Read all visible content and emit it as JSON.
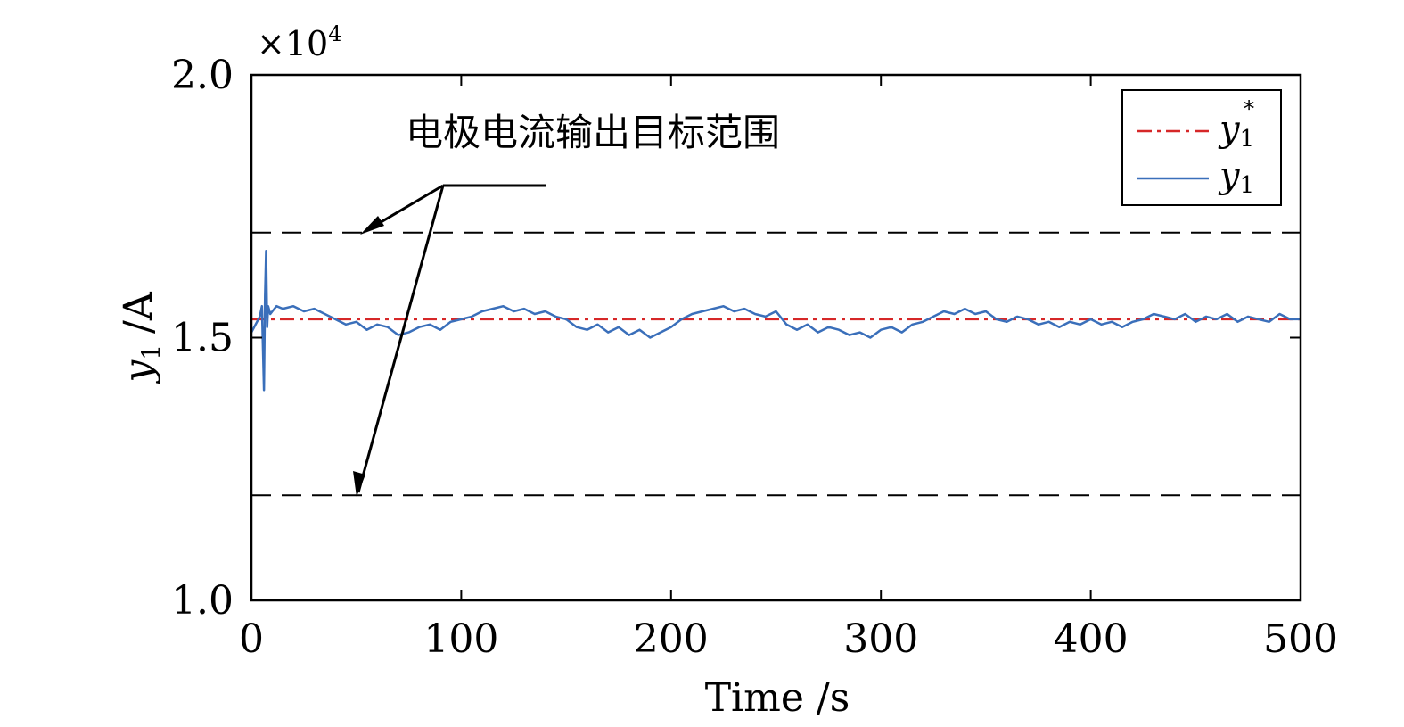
{
  "chart_data": {
    "type": "line",
    "exponent_label": "×10",
    "exponent_power": "4",
    "xlabel": "Time /s",
    "ylabel_var": "y",
    "ylabel_sub": "1",
    "ylabel_unit": "/A",
    "xlim": [
      0,
      500
    ],
    "ylim": [
      10000,
      20000
    ],
    "x_ticks": [
      0,
      100,
      200,
      300,
      400,
      500
    ],
    "x_tick_labels": [
      "0",
      "100",
      "200",
      "300",
      "400",
      "500"
    ],
    "y_ticks": [
      10000,
      15000,
      20000
    ],
    "y_tick_labels": [
      "1.0",
      "1.5",
      "2.0"
    ],
    "annotation": "电极电流输出目标范围",
    "bounds": [
      {
        "name": "upper",
        "y": 17000
      },
      {
        "name": "lower",
        "y": 12000
      }
    ],
    "series": [
      {
        "name": "y1*",
        "legend_var": "y",
        "legend_sub": "1",
        "legend_sup": "*",
        "style": "dashdot",
        "color": "#d62728",
        "x": [
          0,
          500
        ],
        "y": [
          15350,
          15350
        ]
      },
      {
        "name": "y1",
        "legend_var": "y",
        "legend_sub": "1",
        "style": "solid",
        "color": "#3a6fba",
        "x": [
          0,
          2,
          4,
          5,
          6,
          6.5,
          7,
          7.5,
          8,
          9,
          10,
          12,
          15,
          20,
          25,
          30,
          35,
          40,
          45,
          50,
          55,
          60,
          65,
          70,
          75,
          80,
          85,
          90,
          95,
          100,
          105,
          110,
          115,
          120,
          125,
          130,
          135,
          140,
          145,
          150,
          155,
          160,
          165,
          170,
          175,
          180,
          185,
          190,
          195,
          200,
          205,
          210,
          215,
          220,
          225,
          230,
          235,
          240,
          245,
          250,
          255,
          260,
          265,
          270,
          275,
          280,
          285,
          290,
          295,
          300,
          305,
          310,
          315,
          320,
          325,
          330,
          335,
          340,
          345,
          350,
          355,
          360,
          365,
          370,
          375,
          380,
          385,
          390,
          395,
          400,
          405,
          410,
          415,
          420,
          425,
          430,
          435,
          440,
          445,
          450,
          455,
          460,
          465,
          470,
          475,
          480,
          485,
          490,
          495,
          500
        ],
        "y": [
          15100,
          15250,
          15400,
          15600,
          14000,
          15800,
          16650,
          15200,
          15600,
          15450,
          15500,
          15600,
          15550,
          15600,
          15500,
          15550,
          15450,
          15350,
          15250,
          15300,
          15150,
          15250,
          15200,
          15050,
          15100,
          15200,
          15250,
          15150,
          15300,
          15350,
          15400,
          15500,
          15550,
          15600,
          15500,
          15550,
          15450,
          15500,
          15400,
          15350,
          15200,
          15150,
          15250,
          15100,
          15200,
          15050,
          15150,
          15000,
          15100,
          15200,
          15350,
          15450,
          15500,
          15550,
          15600,
          15500,
          15550,
          15450,
          15400,
          15500,
          15250,
          15150,
          15250,
          15100,
          15200,
          15150,
          15050,
          15100,
          15000,
          15150,
          15200,
          15100,
          15250,
          15300,
          15400,
          15500,
          15450,
          15550,
          15450,
          15500,
          15350,
          15300,
          15400,
          15350,
          15250,
          15300,
          15200,
          15300,
          15250,
          15350,
          15250,
          15300,
          15200,
          15300,
          15350,
          15450,
          15400,
          15350,
          15450,
          15300,
          15400,
          15350,
          15450,
          15300,
          15400,
          15350,
          15300,
          15450,
          15350,
          15350
        ]
      }
    ]
  }
}
